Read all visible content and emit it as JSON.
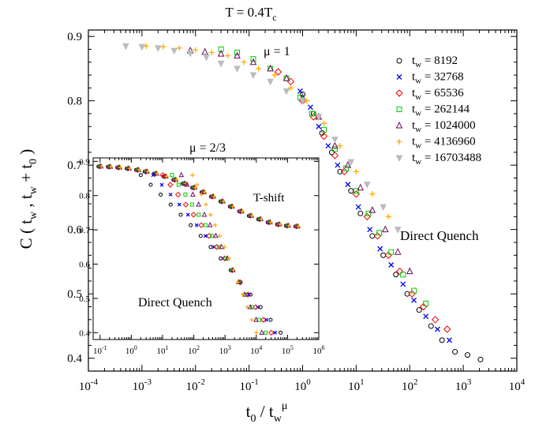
{
  "chart_data": [
    {
      "type": "scatter",
      "title": "T = 0.4T",
      "title_sub": "c",
      "xlabel": {
        "a": "t",
        "a_sub": "0",
        "b": " / t",
        "b_sub": "w",
        "b_sup": "μ"
      },
      "ylabel": {
        "a": "C ( t",
        "a_sub": "w",
        "b": " , t",
        "b_sub": "w",
        "c": " + t",
        "c_sub": "0",
        "d": " )"
      },
      "x_scale": "log",
      "xlim": [
        0.0001,
        10000
      ],
      "ylim": [
        0.38,
        0.91
      ],
      "x_tick_exponents": [
        "-4",
        "-3",
        "-2",
        "-1",
        "0",
        "1",
        "2",
        "3",
        "4"
      ],
      "y_ticks": [
        "0.4",
        "0.5",
        "0.6",
        "0.7",
        "0.8",
        "0.9"
      ],
      "annotations": {
        "mu": "μ = 1",
        "direct_quench": "Direct Quench"
      },
      "legend_position": "top-right",
      "series": [
        {
          "name": "t",
          "sub": "w",
          "value": " = 8192",
          "symbol": "circle",
          "color": "#000000",
          "points": [
            [
              1.0,
              0.81
            ],
            [
              1.6,
              0.78
            ],
            [
              2.3,
              0.75
            ],
            [
              3.5,
              0.72
            ],
            [
              5,
              0.69
            ],
            [
              8,
              0.66
            ],
            [
              12,
              0.625
            ],
            [
              20,
              0.59
            ],
            [
              32,
              0.56
            ],
            [
              55,
              0.53
            ],
            [
              90,
              0.5
            ],
            [
              150,
              0.475
            ],
            [
              250,
              0.45
            ],
            [
              400,
              0.428
            ],
            [
              700,
              0.41
            ],
            [
              1200,
              0.405
            ],
            [
              2100,
              0.398
            ]
          ]
        },
        {
          "name": "t",
          "sub": "w",
          "value": " = 32768",
          "symbol": "x",
          "color": "#0000ee",
          "points": [
            [
              0.9,
              0.815
            ],
            [
              1.4,
              0.79
            ],
            [
              2.0,
              0.76
            ],
            [
              3.0,
              0.73
            ],
            [
              4.5,
              0.7
            ],
            [
              7,
              0.67
            ],
            [
              11,
              0.635
            ],
            [
              18,
              0.6
            ],
            [
              28,
              0.57
            ],
            [
              45,
              0.545
            ],
            [
              75,
              0.515
            ],
            [
              120,
              0.49
            ],
            [
              200,
              0.465
            ],
            [
              330,
              0.445
            ],
            [
              550,
              0.428
            ]
          ]
        },
        {
          "name": "t",
          "sub": "w",
          "value": " = 65536",
          "symbol": "diamond",
          "color": "#ee0000",
          "points": [
            [
              0.35,
              0.845
            ],
            [
              0.6,
              0.83
            ],
            [
              1.0,
              0.8
            ],
            [
              1.6,
              0.775
            ],
            [
              2.5,
              0.745
            ],
            [
              4,
              0.715
            ],
            [
              6,
              0.69
            ],
            [
              10,
              0.655
            ],
            [
              16,
              0.62
            ],
            [
              25,
              0.59
            ],
            [
              40,
              0.56
            ],
            [
              65,
              0.535
            ],
            [
              110,
              0.5
            ],
            [
              180,
              0.48
            ],
            [
              300,
              0.46
            ],
            [
              500,
              0.445
            ]
          ]
        },
        {
          "name": "t",
          "sub": "w",
          "value": " = 262144",
          "symbol": "square",
          "color": "#00cc00",
          "points": [
            [
              0.03,
              0.88
            ],
            [
              0.06,
              0.875
            ],
            [
              0.12,
              0.865
            ],
            [
              0.25,
              0.85
            ],
            [
              0.5,
              0.835
            ],
            [
              0.9,
              0.805
            ],
            [
              1.5,
              0.78
            ],
            [
              2.5,
              0.755
            ],
            [
              4,
              0.725
            ],
            [
              6.5,
              0.695
            ],
            [
              10,
              0.66
            ],
            [
              17,
              0.625
            ],
            [
              27,
              0.595
            ],
            [
              45,
              0.565
            ],
            [
              75,
              0.53
            ],
            [
              120,
              0.505
            ],
            [
              200,
              0.485
            ]
          ]
        },
        {
          "name": "t",
          "sub": "w",
          "value": " = 1024000",
          "symbol": "triangle",
          "color": "#6a0a5e",
          "points": [
            [
              0.008,
              0.878
            ],
            [
              0.015,
              0.876
            ],
            [
              0.03,
              0.873
            ],
            [
              0.06,
              0.87
            ],
            [
              0.12,
              0.86
            ],
            [
              0.25,
              0.85
            ],
            [
              0.5,
              0.835
            ],
            [
              1.0,
              0.805
            ],
            [
              2,
              0.775
            ],
            [
              4,
              0.73
            ],
            [
              7,
              0.7
            ],
            [
              12,
              0.665
            ],
            [
              20,
              0.63
            ],
            [
              35,
              0.6
            ],
            [
              60,
              0.565
            ],
            [
              100,
              0.535
            ]
          ]
        },
        {
          "name": "t",
          "sub": "w",
          "value": " = 4136960",
          "symbol": "plus",
          "color": "#ffaa00",
          "points": [
            [
              0.0012,
              0.885
            ],
            [
              0.0025,
              0.884
            ],
            [
              0.005,
              0.882
            ],
            [
              0.01,
              0.879
            ],
            [
              0.02,
              0.875
            ],
            [
              0.04,
              0.87
            ],
            [
              0.08,
              0.86
            ],
            [
              0.15,
              0.85
            ],
            [
              0.3,
              0.84
            ],
            [
              0.6,
              0.82
            ],
            [
              1.2,
              0.8
            ],
            [
              2.5,
              0.765
            ],
            [
              5,
              0.73
            ],
            [
              10,
              0.69
            ],
            [
              20,
              0.655
            ],
            [
              40,
              0.62
            ]
          ]
        },
        {
          "name": "t",
          "sub": "w",
          "value": " = 16703488",
          "symbol": "triangle-down",
          "color": "#bbbbbb",
          "points": [
            [
              0.0005,
              0.885
            ],
            [
              0.001,
              0.884
            ],
            [
              0.002,
              0.882
            ],
            [
              0.004,
              0.878
            ],
            [
              0.008,
              0.874
            ],
            [
              0.016,
              0.868
            ],
            [
              0.03,
              0.858
            ],
            [
              0.06,
              0.85
            ],
            [
              0.12,
              0.84
            ],
            [
              0.25,
              0.83
            ],
            [
              0.5,
              0.815
            ],
            [
              1.0,
              0.8
            ],
            [
              2,
              0.775
            ],
            [
              4,
              0.74
            ],
            [
              8,
              0.705
            ],
            [
              16,
              0.67
            ],
            [
              32,
              0.635
            ],
            [
              60,
              0.6
            ]
          ]
        }
      ]
    },
    {
      "type": "scatter",
      "title": "μ = 2/3",
      "x_scale": "log",
      "xlim": [
        0.06,
        1000000
      ],
      "ylim": [
        0.38,
        0.91
      ],
      "x_tick_exponents": [
        "-1",
        "0",
        "1",
        "2",
        "3",
        "4",
        "5",
        "6"
      ],
      "y_ticks": [
        "0.4",
        "0.5",
        "0.6",
        "0.7",
        "0.8",
        "0.9"
      ],
      "annotations": {
        "t_shift": "T-shift",
        "direct_quench": "Direct Quench"
      },
      "tshift_x": [
        0.1,
        0.2,
        0.4,
        0.8,
        1.6,
        3,
        6,
        12,
        25,
        50,
        100,
        200,
        400,
        800,
        1600,
        3200,
        6500,
        13000,
        26000,
        52000,
        100000,
        200000
      ],
      "tshift_y": [
        0.885,
        0.884,
        0.882,
        0.879,
        0.875,
        0.87,
        0.864,
        0.856,
        0.846,
        0.835,
        0.823,
        0.81,
        0.797,
        0.783,
        0.768,
        0.754,
        0.741,
        0.731,
        0.722,
        0.716,
        0.712,
        0.71
      ],
      "quench": [
        {
          "color": "#000000",
          "symbol": "circle",
          "x0": 2,
          "x1": 60000
        },
        {
          "color": "#0000ee",
          "symbol": "x",
          "x0": 5,
          "x1": 40000
        },
        {
          "color": "#ee0000",
          "symbol": "diamond",
          "x0": 10,
          "x1": 30000
        },
        {
          "color": "#00cc00",
          "symbol": "square",
          "x0": 20,
          "x1": 20000
        },
        {
          "color": "#6a0a5e",
          "symbol": "triangle",
          "x0": 40,
          "x1": 15000
        },
        {
          "color": "#ffaa00",
          "symbol": "plus",
          "x0": 90,
          "x1": 10000
        }
      ]
    }
  ]
}
